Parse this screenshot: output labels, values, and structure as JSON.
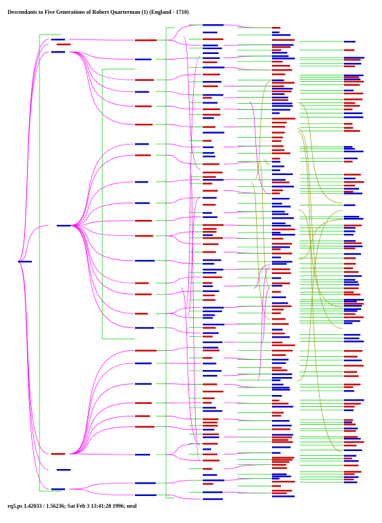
{
  "title": "Descendants to Five Generations of Robert Quarterman (1) (England - 1710)",
  "footer": "rq5.ps  1.42033 / 1.56236; Sat Feb  3 13:41:28 1996; neal",
  "colors": {
    "background": "#ffffff",
    "male_label": "#0000cc",
    "female_label": "#cc0000",
    "child_link": "#ff00ff",
    "spouse_link": "#00cc00",
    "cross_link": "#999900",
    "text": "#000000"
  },
  "legend_semantics": {
    "male": "blue name box",
    "female": "red name box"
  }
}
